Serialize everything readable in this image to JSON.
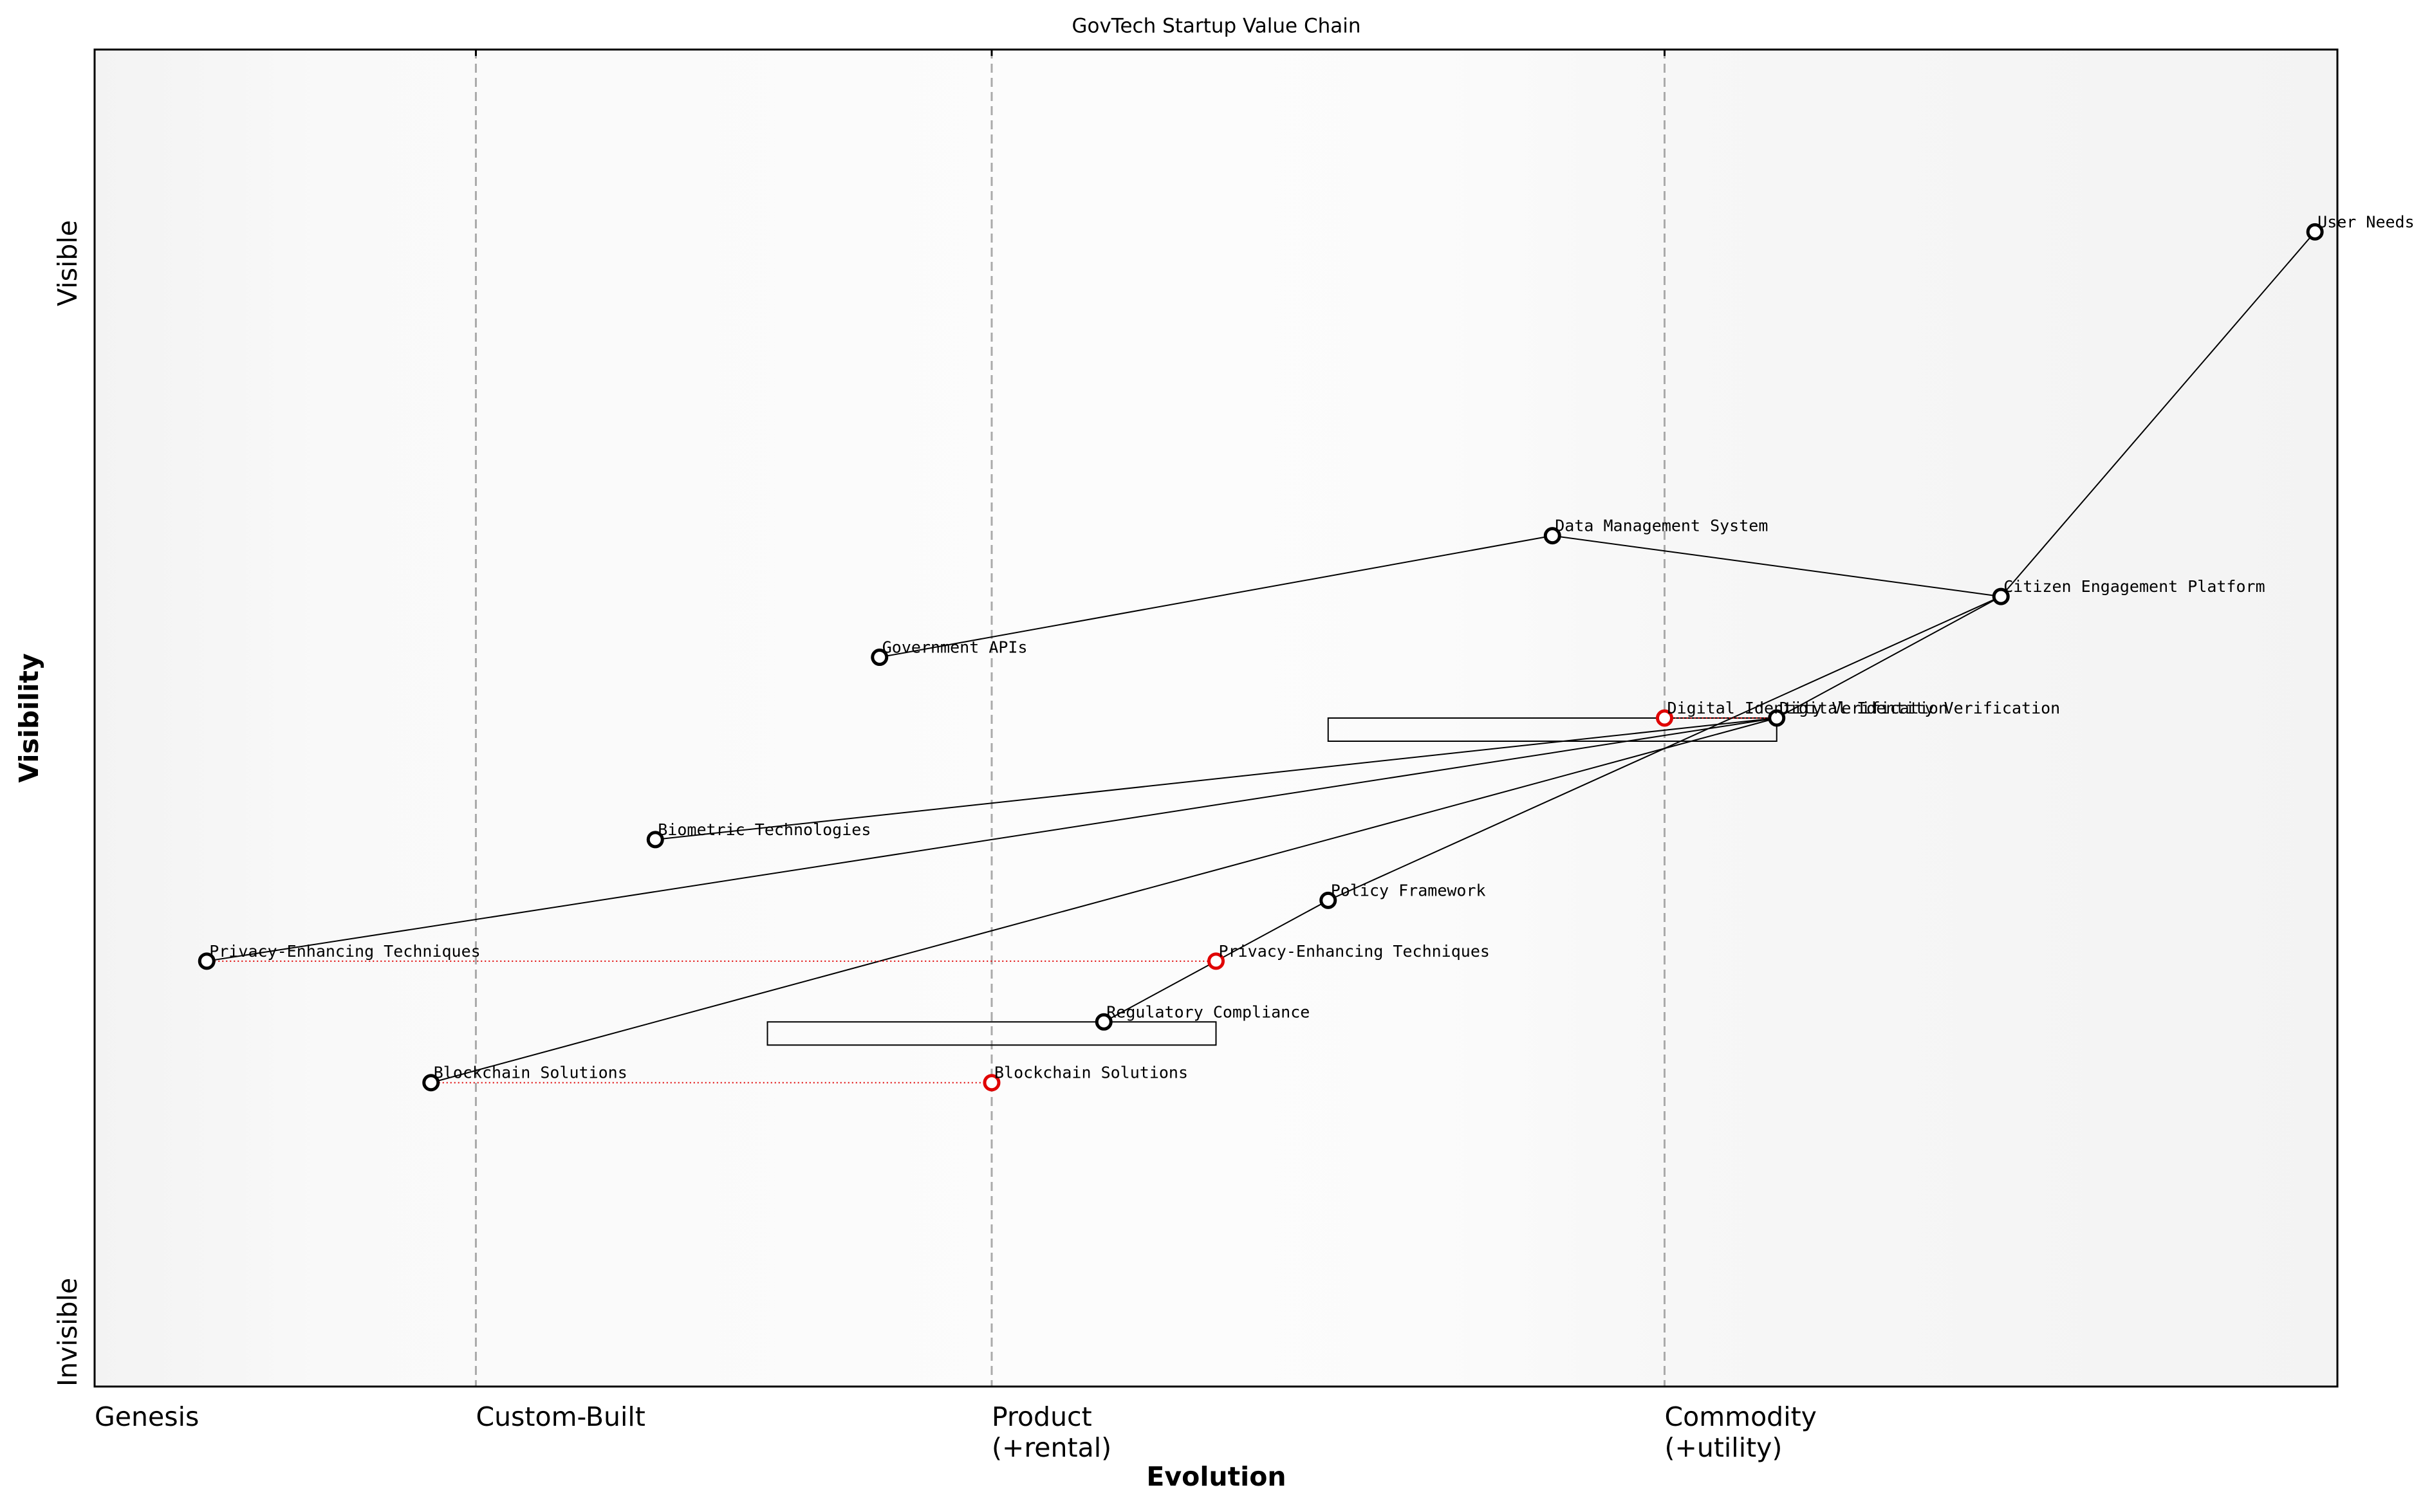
{
  "chart_data": {
    "type": "wardley",
    "title": "GovTech Startup Value Chain",
    "x_label": "Evolution",
    "y_label": "Visibility",
    "y_top_label": "Visible",
    "y_bottom_label": "Invisible",
    "xlim": [
      0,
      1
    ],
    "ylim": [
      0,
      1.1
    ],
    "xticks": [
      {
        "value": 0,
        "label": [
          "Genesis"
        ]
      },
      {
        "value": 0.17,
        "label": [
          "Custom-Built"
        ]
      },
      {
        "value": 0.4,
        "label": [
          "Product",
          "(+rental)"
        ]
      },
      {
        "value": 0.7,
        "label": [
          "Commodity",
          "(+utility)"
        ]
      }
    ],
    "grid": true,
    "color": "#000000",
    "evolve_color": "#e00000",
    "components": [
      {
        "name": "User Needs",
        "evolution": 0.99,
        "visibility": 0.95
      },
      {
        "name": "Citizen Engagement Platform",
        "evolution": 0.85,
        "visibility": 0.65
      },
      {
        "name": "Data Management System",
        "evolution": 0.65,
        "visibility": 0.7
      },
      {
        "name": "Government APIs",
        "evolution": 0.35,
        "visibility": 0.6
      },
      {
        "name": "Digital Identity Verification",
        "evolution": 0.75,
        "visibility": 0.55,
        "evolve": 0.7,
        "inertia": [
          0.55,
          0.75
        ]
      },
      {
        "name": "Biometric Technologies",
        "evolution": 0.25,
        "visibility": 0.45
      },
      {
        "name": "Policy Framework",
        "evolution": 0.55,
        "visibility": 0.4
      },
      {
        "name": "Privacy-Enhancing Techniques",
        "evolution": 0.05,
        "visibility": 0.35,
        "evolve": 0.5
      },
      {
        "name": "Regulatory Compliance",
        "evolution": 0.45,
        "visibility": 0.3,
        "inertia": [
          0.3,
          0.5
        ]
      },
      {
        "name": "Blockchain Solutions",
        "evolution": 0.15,
        "visibility": 0.25,
        "evolve": 0.4
      }
    ],
    "links": [
      [
        "User Needs",
        "Citizen Engagement Platform"
      ],
      [
        "Citizen Engagement Platform",
        "Data Management System"
      ],
      [
        "Data Management System",
        "Government APIs"
      ],
      [
        "Citizen Engagement Platform",
        "Digital Identity Verification"
      ],
      [
        "Citizen Engagement Platform",
        "Policy Framework"
      ],
      [
        "Digital Identity Verification",
        "Biometric Technologies"
      ],
      [
        "Digital Identity Verification",
        "Privacy-Enhancing Techniques"
      ],
      [
        "Digital Identity Verification",
        "Blockchain Solutions"
      ],
      [
        "Policy Framework",
        "Regulatory Compliance"
      ]
    ]
  }
}
